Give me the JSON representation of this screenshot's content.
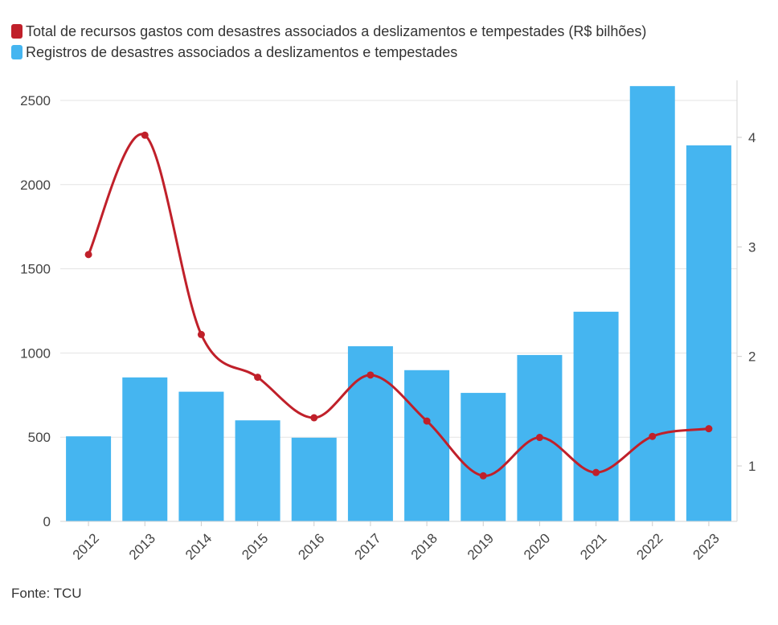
{
  "chart_data": {
    "type": "bar+line",
    "categories": [
      "2012",
      "2013",
      "2014",
      "2015",
      "2016",
      "2017",
      "2018",
      "2019",
      "2020",
      "2021",
      "2022",
      "2023"
    ],
    "series": [
      {
        "name": "Registros de desastres associados a deslizamentos e tempestades",
        "type": "bar",
        "axis": "left",
        "color": "#45b5f0",
        "values": [
          505,
          855,
          770,
          600,
          497,
          1040,
          898,
          763,
          988,
          1245,
          2585,
          2233
        ]
      },
      {
        "name": "Total de recursos gastos com desastres associados a deslizamentos e tempestades (R$ bilhões)",
        "type": "line",
        "axis": "right",
        "color": "#c0202a",
        "values": [
          2.93,
          4.02,
          2.2,
          1.81,
          1.44,
          1.83,
          1.41,
          0.91,
          1.26,
          0.94,
          1.27,
          1.34
        ]
      }
    ],
    "y_left": {
      "min": 0,
      "max": 2600,
      "ticks": [
        0,
        500,
        1000,
        1500,
        2000,
        2500
      ]
    },
    "y_right": {
      "min": 0.5,
      "max": 4.5,
      "ticks": [
        1,
        2,
        3,
        4
      ]
    },
    "grid": true,
    "legend_position": "top-left"
  },
  "legend": {
    "items": [
      {
        "label": "Total de recursos gastos com desastres associados a deslizamentos e tempestades (R$ bilhões)",
        "color": "#c0202a"
      },
      {
        "label": "Registros de desastres associados a deslizamentos e tempestades",
        "color": "#45b5f0"
      }
    ]
  },
  "source": "Fonte: TCU"
}
